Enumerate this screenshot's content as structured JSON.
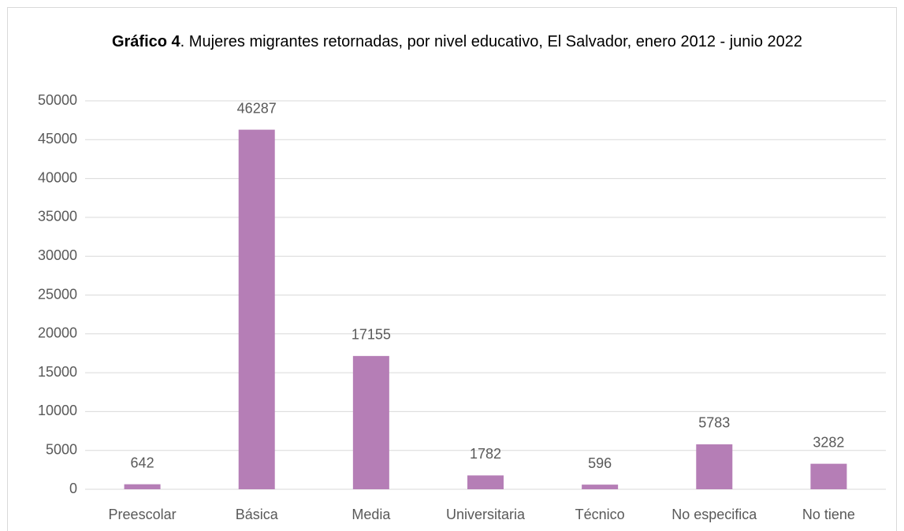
{
  "chart_data": {
    "type": "bar",
    "title_bold": "Gráfico 4",
    "title": ". Mujeres migrantes retornadas, por nivel educativo, El Salvador, enero 2012 - junio 2022",
    "categories": [
      "Preescolar",
      "Básica",
      "Media",
      "Universitaria",
      "Técnico",
      "No especifica",
      "No tiene"
    ],
    "values": [
      642,
      46287,
      17155,
      1782,
      596,
      5783,
      3282
    ],
    "color": "#b57eb6",
    "ylim": [
      0,
      50000
    ],
    "yticks": [
      0,
      5000,
      10000,
      15000,
      20000,
      25000,
      30000,
      35000,
      40000,
      45000,
      50000
    ],
    "grid": true
  }
}
